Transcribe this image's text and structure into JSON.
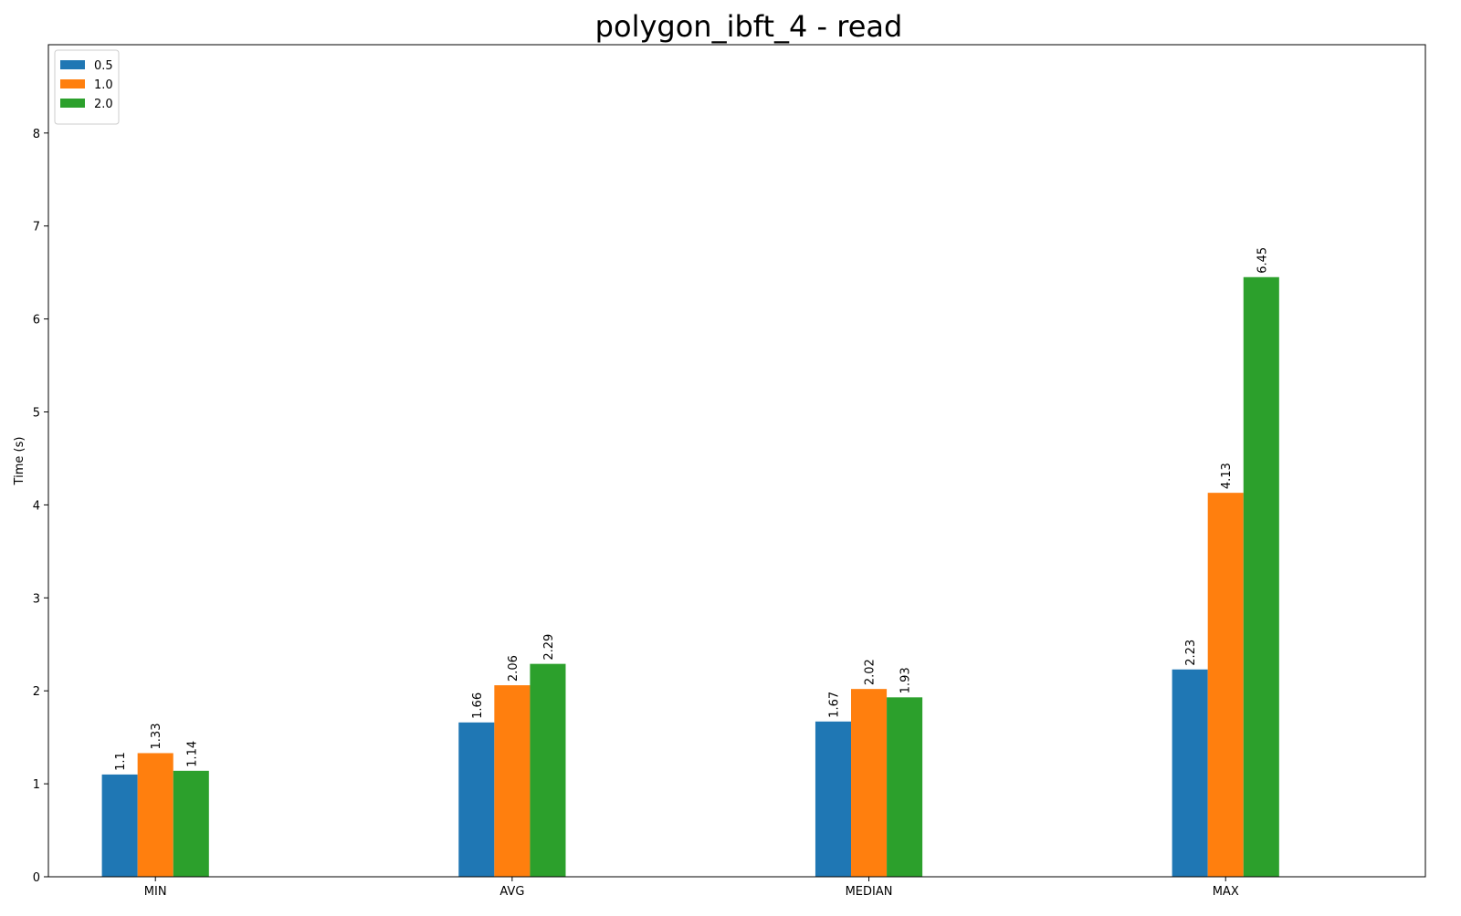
{
  "chart_data": {
    "type": "bar",
    "title": "polygon_ibft_4 - read",
    "xlabel": "",
    "ylabel": "Time (s)",
    "categories": [
      "MIN",
      "AVG",
      "MEDIAN",
      "MAX"
    ],
    "series": [
      {
        "name": "0.5",
        "color": "#1f77b4",
        "values": [
          1.1,
          1.66,
          1.67,
          2.23
        ]
      },
      {
        "name": "1.0",
        "color": "#ff7f0e",
        "values": [
          1.33,
          2.06,
          2.02,
          4.13
        ]
      },
      {
        "name": "2.0",
        "color": "#2ca02c",
        "values": [
          1.14,
          2.29,
          1.93,
          6.45
        ]
      }
    ],
    "ylim": [
      0,
      8.95
    ],
    "yticks": [
      0,
      1,
      2,
      3,
      4,
      5,
      6,
      7,
      8
    ],
    "grid": false,
    "legend_position": "top-left"
  }
}
